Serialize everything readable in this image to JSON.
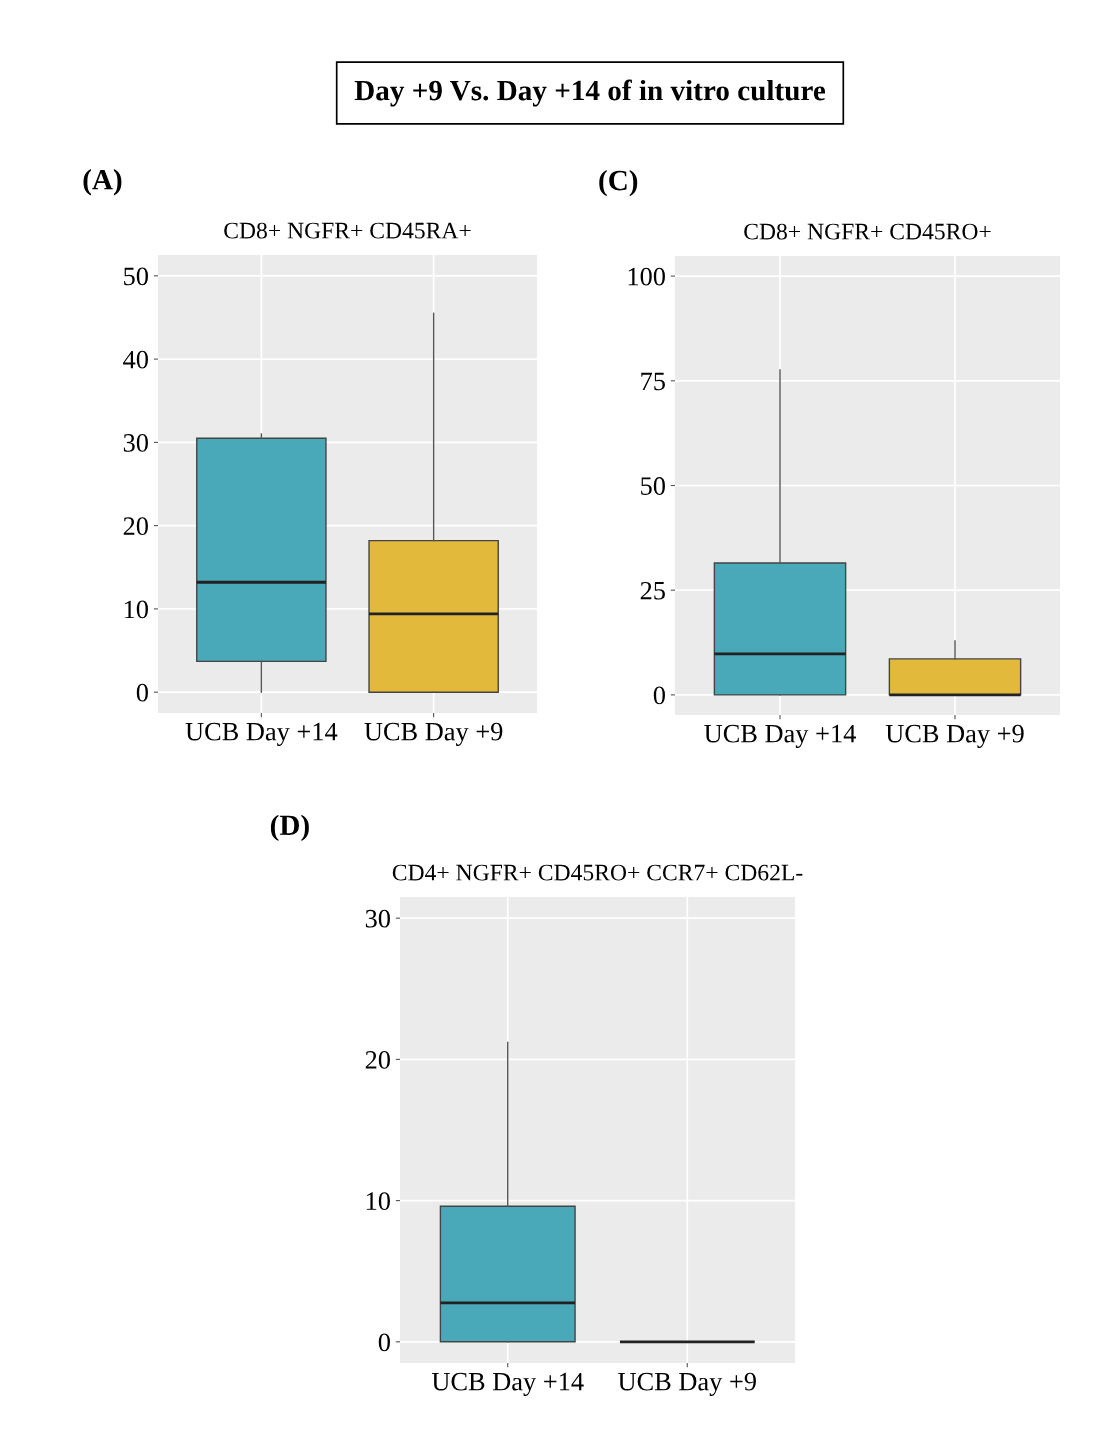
{
  "chart_data": [
    {
      "type": "box",
      "title": "CD8+ NGFR+ CD45RA+",
      "annotations": [
        "Day +9 Vs. Day +14 of in vitro culture",
        "(A)"
      ],
      "categories": [
        "UCB Day +14",
        "UCB Day +9"
      ],
      "colors": [
        "#4aa9b8",
        "#e2b93b"
      ],
      "boxes": [
        {
          "low": 0,
          "q1": 3.7,
          "median": 13.2,
          "q3": 30.5,
          "high": 31
        },
        {
          "low": 0,
          "q1": 0,
          "median": 9.4,
          "q3": 18.2,
          "high": 45.5
        }
      ],
      "ylim": [
        -2.5,
        52.5
      ],
      "yticks": [
        0,
        10,
        20,
        30,
        40,
        50
      ],
      "grid": true
    },
    {
      "type": "box",
      "title": "CD8+ NGFR+ CD45RO+",
      "annotations": [
        "(C)"
      ],
      "categories": [
        "UCB Day +14",
        "UCB Day +9"
      ],
      "colors": [
        "#4aa9b8",
        "#e2b93b"
      ],
      "boxes": [
        {
          "low": 0,
          "q1": 0,
          "median": 9.8,
          "q3": 31.5,
          "high": 77.6
        },
        {
          "low": 0,
          "q1": 0,
          "median": 0,
          "q3": 8.6,
          "high": 12.9
        }
      ],
      "ylim": [
        -4.8,
        104.8
      ],
      "yticks": [
        0,
        25,
        50,
        75,
        100
      ],
      "grid": true
    },
    {
      "type": "box",
      "title": "CD4+ NGFR+ CD45RO+ CCR7+ CD62L-",
      "annotations": [
        "(D)"
      ],
      "categories": [
        "UCB Day +14",
        "UCB Day +9"
      ],
      "colors": [
        "#4aa9b8",
        null
      ],
      "boxes": [
        {
          "low": 0,
          "q1": 0,
          "median": 2.75,
          "q3": 9.6,
          "high": 21.2
        },
        {
          "low": 0,
          "q1": 0,
          "median": 0,
          "q3": 0,
          "high": 0
        }
      ],
      "ylim": [
        -1.5,
        31.5
      ],
      "yticks": [
        0,
        10,
        20,
        30
      ],
      "grid": true
    }
  ]
}
